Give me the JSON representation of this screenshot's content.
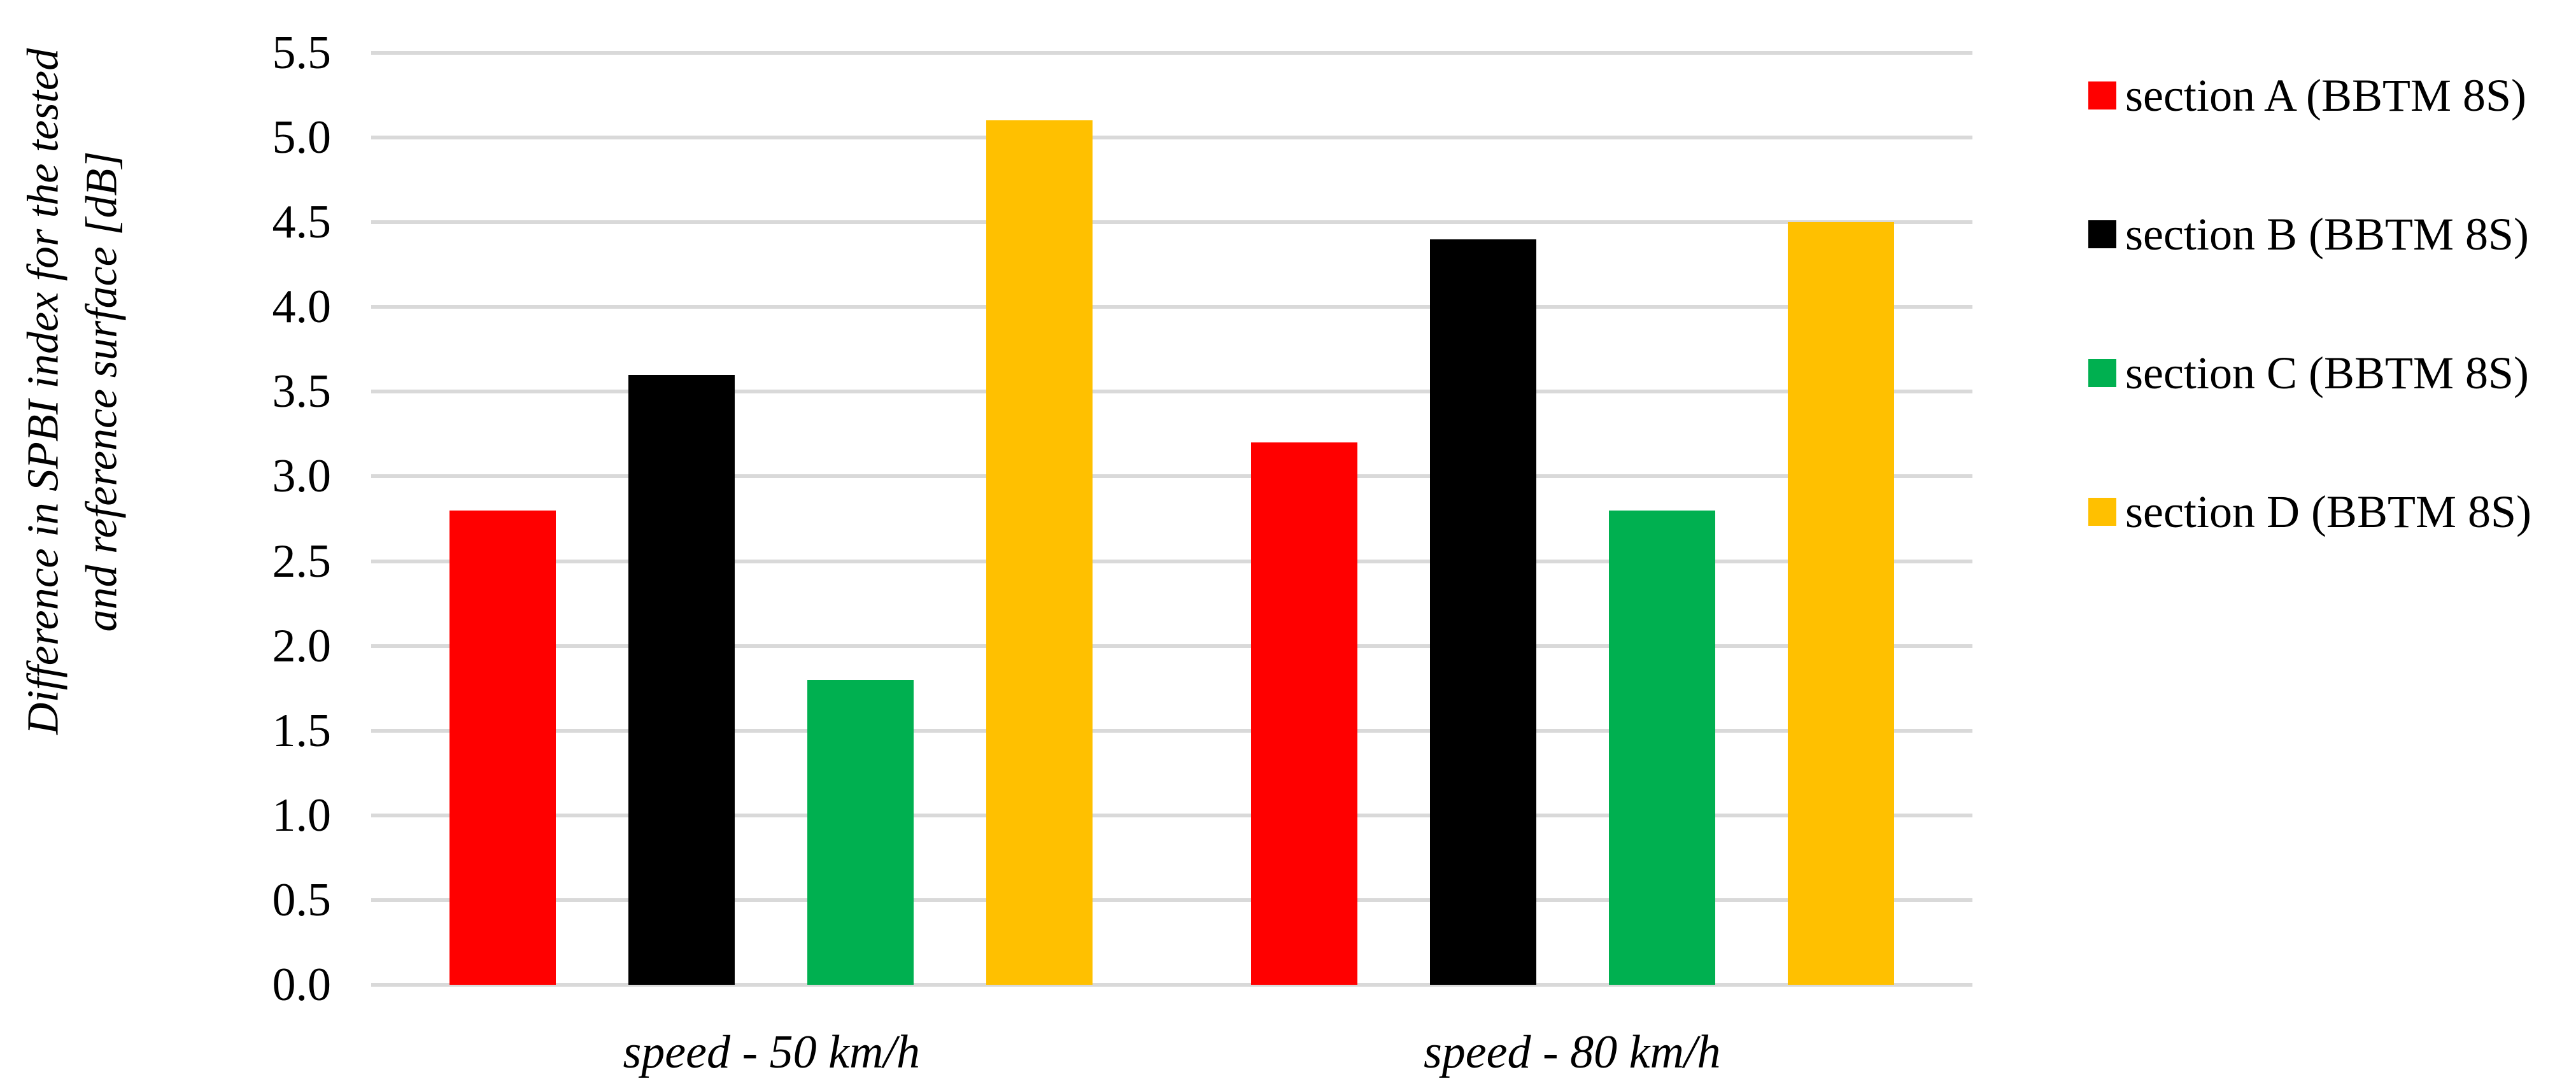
{
  "chart_data": {
    "type": "bar",
    "title": "",
    "categories": [
      "speed - 50 km/h",
      "speed - 80 km/h"
    ],
    "series": [
      {
        "name": "section A (BBTM 8S)",
        "color": "#FF0000",
        "values": [
          2.8,
          3.2
        ]
      },
      {
        "name": "section B (BBTM 8S)",
        "color": "#000000",
        "values": [
          3.6,
          4.4
        ]
      },
      {
        "name": "section C (BBTM 8S)",
        "color": "#00B050",
        "values": [
          1.8,
          2.8
        ]
      },
      {
        "name": "section D (BBTM 8S)",
        "color": "#FFC000",
        "values": [
          5.1,
          4.5
        ]
      }
    ],
    "xlabel": "",
    "ylabel": "Difference in SPBI index for the tested and reference surface [dB]",
    "ylabel_lines": [
      "Difference in SPBI index for the tested",
      "and reference surface [dB]"
    ],
    "yticks": [
      "0.0",
      "0.5",
      "1.0",
      "1.5",
      "2.0",
      "2.5",
      "3.0",
      "3.5",
      "4.0",
      "4.5",
      "5.0",
      "5.5"
    ],
    "ylim": [
      0,
      5.5
    ],
    "grid": true,
    "gridline_color": "#D9D9D9",
    "legend_position": "right",
    "background_color": "#FFFFFF"
  }
}
